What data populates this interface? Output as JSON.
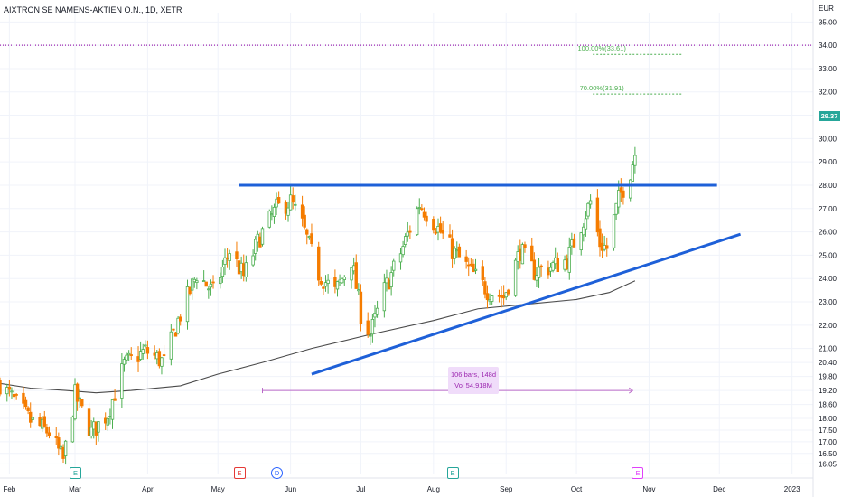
{
  "header": {
    "title": "AIXTRON SE NAMENS-AKTIEN O.N., 1D, XETR"
  },
  "price_axis": {
    "currency": "EUR",
    "last_price": "29.37"
  },
  "stats_box": {
    "line1": "106 bars, 148d",
    "line2": "Vol 54.918M"
  },
  "events": [
    {
      "letter": "E",
      "kind": "earnings",
      "color": "#26a69a",
      "date": "2022-03-01"
    },
    {
      "letter": "E",
      "kind": "earnings",
      "color": "#e53935",
      "date": "2022-05-10"
    },
    {
      "letter": "D",
      "kind": "dividend",
      "color": "#2962ff",
      "date": "2022-05-26"
    },
    {
      "letter": "E",
      "kind": "earnings",
      "color": "#26a69a",
      "date": "2022-08-09"
    },
    {
      "letter": "E",
      "kind": "earnings",
      "color": "#e040fb",
      "date": "2022-10-27"
    }
  ],
  "chart_data": {
    "type": "candlestick",
    "ylim": [
      15.6,
      35.4
    ],
    "xlim": [
      "2022-01-28",
      "2023-01-10"
    ],
    "grid": true,
    "y_ticks": [
      "16.05",
      "16.50",
      "17.00",
      "17.50",
      "18.00",
      "18.60",
      "19.20",
      "19.80",
      "20.40",
      "21.00",
      "22.00",
      "23.00",
      "24.00",
      "25.00",
      "26.00",
      "27.00",
      "28.00",
      "29.00",
      "30.00",
      "31.00",
      "32.00",
      "33.00",
      "34.00",
      "35.00"
    ],
    "x_ticks": [
      {
        "label": "Feb",
        "date": "2022-02-01"
      },
      {
        "label": "Mar",
        "date": "2022-03-01"
      },
      {
        "label": "Apr",
        "date": "2022-04-01"
      },
      {
        "label": "May",
        "date": "2022-05-01"
      },
      {
        "label": "Jun",
        "date": "2022-06-01"
      },
      {
        "label": "Jul",
        "date": "2022-07-01"
      },
      {
        "label": "Aug",
        "date": "2022-08-01"
      },
      {
        "label": "Sep",
        "date": "2022-09-01"
      },
      {
        "label": "Oct",
        "date": "2022-10-01"
      },
      {
        "label": "Nov",
        "date": "2022-11-01"
      },
      {
        "label": "Dec",
        "date": "2022-12-01"
      },
      {
        "label": "2023",
        "date": "2023-01-01"
      }
    ],
    "price_path": [
      [
        "2022-01-28",
        19.5
      ],
      [
        "2022-02-10",
        17.9
      ],
      [
        "2022-02-18",
        17.4
      ],
      [
        "2022-02-24",
        16.2
      ],
      [
        "2022-03-01",
        19.0
      ],
      [
        "2022-03-08",
        17.4
      ],
      [
        "2022-03-15",
        18.2
      ],
      [
        "2022-03-22",
        20.3
      ],
      [
        "2022-03-31",
        20.9
      ],
      [
        "2022-04-08",
        20.4
      ],
      [
        "2022-04-14",
        22.2
      ],
      [
        "2022-04-22",
        24.2
      ],
      [
        "2022-04-29",
        23.4
      ],
      [
        "2022-05-06",
        25.2
      ],
      [
        "2022-05-12",
        24.1
      ],
      [
        "2022-05-19",
        25.8
      ],
      [
        "2022-05-26",
        27.0
      ],
      [
        "2022-06-01",
        27.3
      ],
      [
        "2022-06-06",
        26.3
      ],
      [
        "2022-06-13",
        24.2
      ],
      [
        "2022-06-20",
        23.4
      ],
      [
        "2022-06-27",
        24.8
      ],
      [
        "2022-07-01",
        22.5
      ],
      [
        "2022-07-05",
        21.6
      ],
      [
        "2022-07-11",
        23.5
      ],
      [
        "2022-07-18",
        25.1
      ],
      [
        "2022-07-26",
        27.2
      ],
      [
        "2022-08-02",
        26.3
      ],
      [
        "2022-08-09",
        25.2
      ],
      [
        "2022-08-16",
        24.4
      ],
      [
        "2022-08-24",
        23.5
      ],
      [
        "2022-08-31",
        23.2
      ],
      [
        "2022-09-07",
        25.2
      ],
      [
        "2022-09-13",
        24.3
      ],
      [
        "2022-09-20",
        24.5
      ],
      [
        "2022-09-27",
        24.8
      ],
      [
        "2022-10-03",
        26.3
      ],
      [
        "2022-10-07",
        27.3
      ],
      [
        "2022-10-11",
        25.5
      ],
      [
        "2022-10-14",
        25.3
      ],
      [
        "2022-10-19",
        27.4
      ],
      [
        "2022-10-24",
        28.6
      ],
      [
        "2022-10-26",
        29.37
      ]
    ],
    "moving_average": [
      [
        "2022-01-28",
        19.5
      ],
      [
        "2022-02-10",
        19.3
      ],
      [
        "2022-02-25",
        19.2
      ],
      [
        "2022-03-10",
        19.1
      ],
      [
        "2022-03-25",
        19.2
      ],
      [
        "2022-04-15",
        19.4
      ],
      [
        "2022-05-01",
        19.9
      ],
      [
        "2022-05-20",
        20.4
      ],
      [
        "2022-06-10",
        21.0
      ],
      [
        "2022-07-05",
        21.6
      ],
      [
        "2022-08-01",
        22.2
      ],
      [
        "2022-08-20",
        22.7
      ],
      [
        "2022-09-10",
        22.9
      ],
      [
        "2022-10-01",
        23.1
      ],
      [
        "2022-10-15",
        23.4
      ],
      [
        "2022-10-26",
        23.9
      ]
    ],
    "resistance_line": {
      "from": [
        "2022-05-10",
        28.0
      ],
      "to": [
        "2022-11-30",
        28.0
      ],
      "color": "#1e60d8"
    },
    "support_line": {
      "from": [
        "2022-06-10",
        19.9
      ],
      "to": [
        "2022-12-10",
        25.9
      ],
      "color": "#1e60d8"
    },
    "fib_levels": [
      {
        "label": "100.00%(33.61)",
        "value": 33.61
      },
      {
        "label": "70.00%(31.91)",
        "value": 31.91
      }
    ],
    "resistance_dotted": {
      "value": 34.0,
      "color": "#9c27b0"
    },
    "measure_range": {
      "from": "2022-05-20",
      "to": "2022-10-25"
    }
  }
}
